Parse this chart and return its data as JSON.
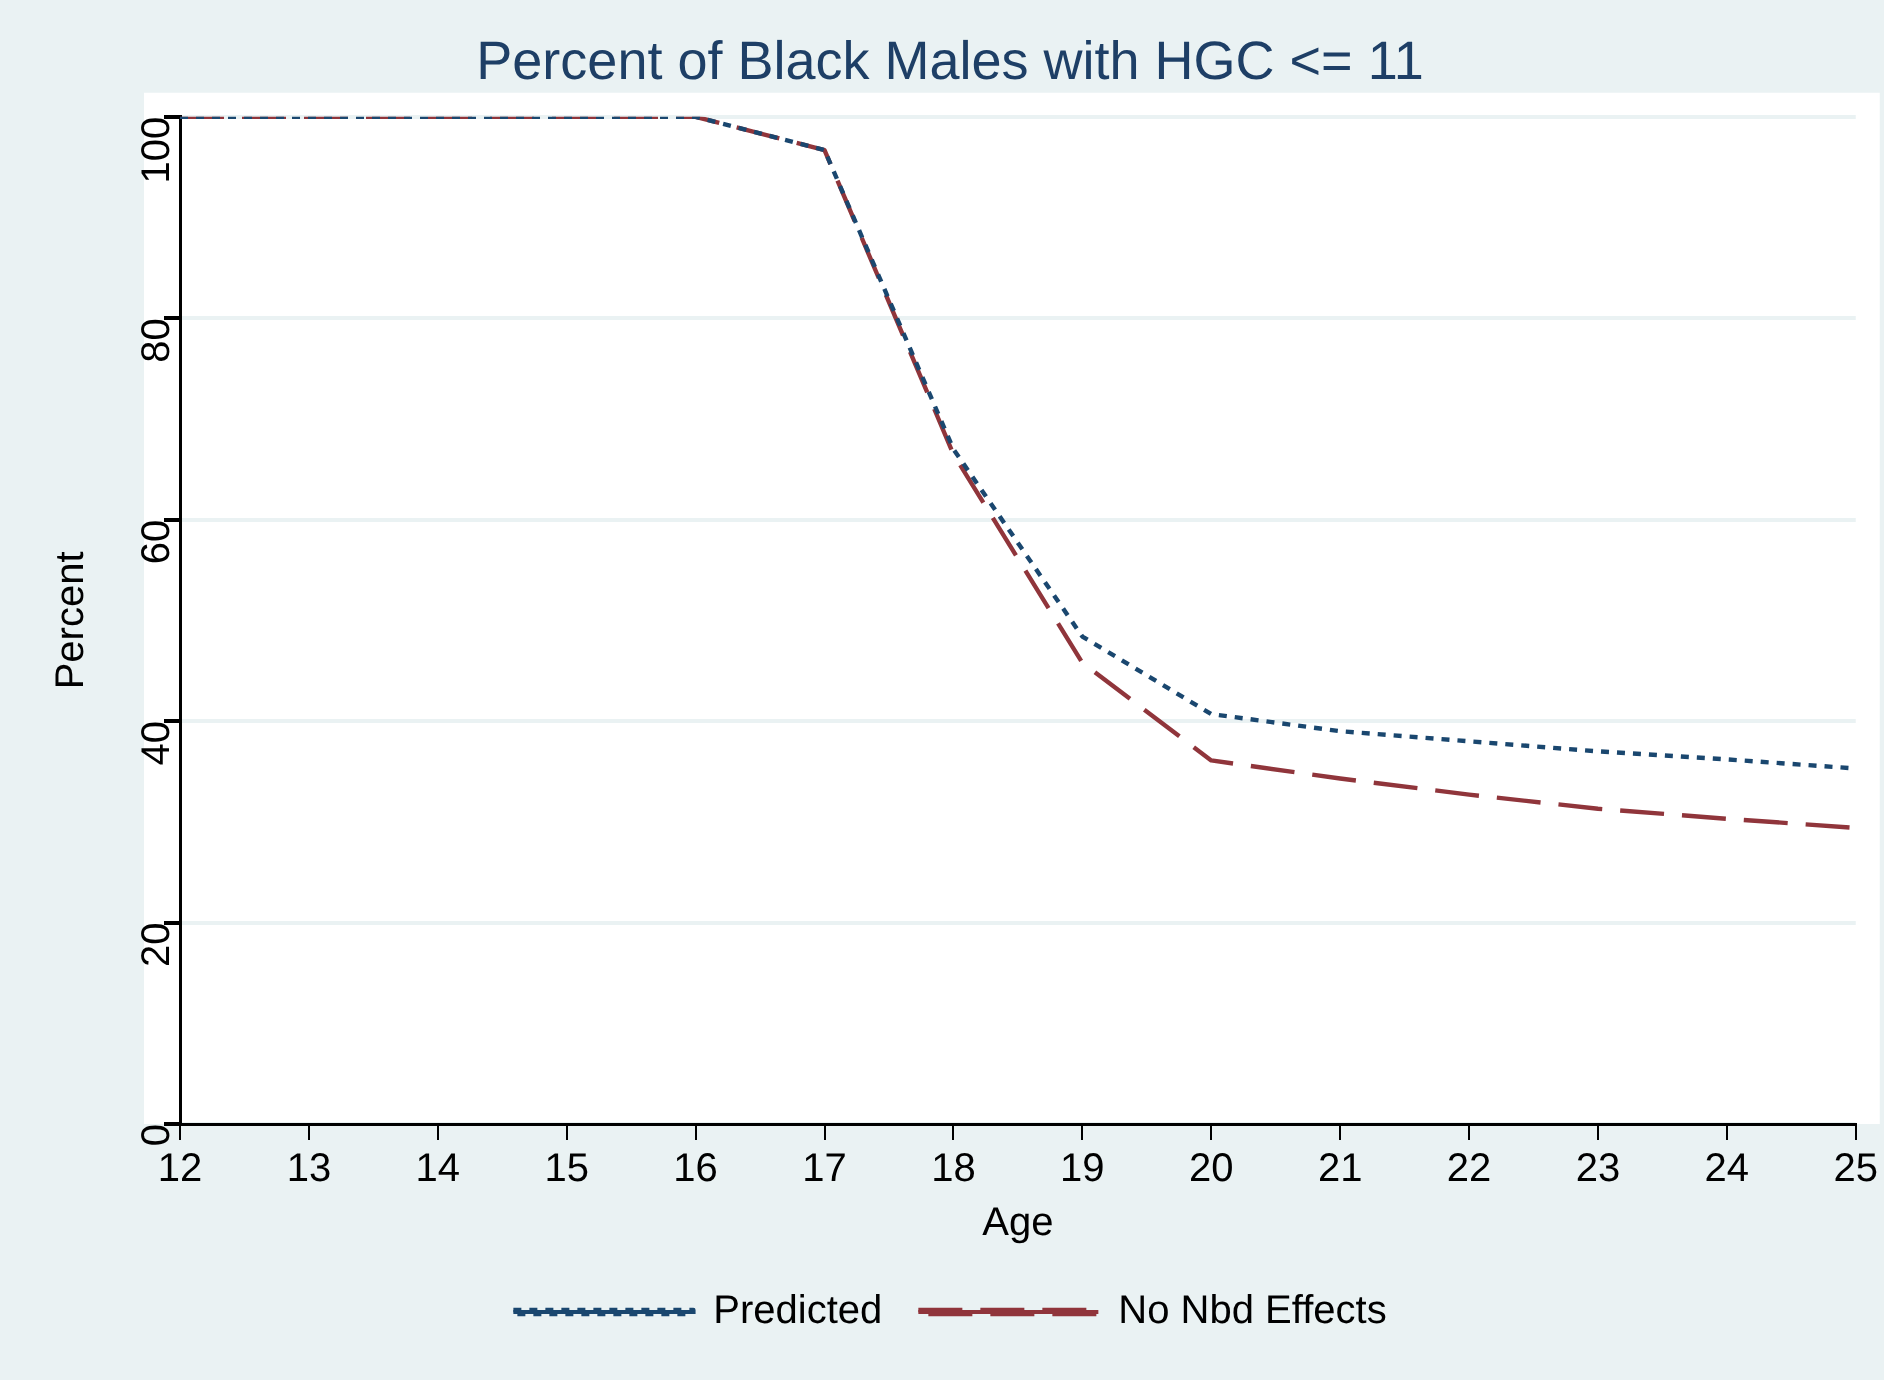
{
  "chart_data": {
    "type": "line",
    "title": "Percent of Black Males with HGC <= 11",
    "xlabel": "Age",
    "ylabel": "Percent",
    "x": [
      12,
      13,
      14,
      15,
      16,
      17,
      18,
      19,
      20,
      21,
      22,
      23,
      24,
      25
    ],
    "series": [
      {
        "name": "Predicted",
        "color": "#1a476f",
        "line_style": "dotted",
        "values": [
          100,
          100,
          100,
          100,
          100,
          96.7,
          67,
          48.4,
          40.7,
          39,
          38,
          37,
          36.2,
          35.3
        ]
      },
      {
        "name": "No Nbd Effects",
        "color": "#90353b",
        "line_style": "dashed",
        "values": [
          100,
          100,
          100,
          100,
          100,
          96.7,
          66.5,
          45.8,
          36.1,
          34.3,
          32.7,
          31.3,
          30.3,
          29.4
        ]
      }
    ],
    "xlim": [
      12,
      25
    ],
    "xticks": [
      12,
      13,
      14,
      15,
      16,
      17,
      18,
      19,
      20,
      21,
      22,
      23,
      24,
      25
    ],
    "ylim": [
      0,
      100
    ],
    "yticks": [
      0,
      20,
      40,
      60,
      80,
      100
    ],
    "grid": "y",
    "legend": "bottom",
    "marker": "none"
  }
}
